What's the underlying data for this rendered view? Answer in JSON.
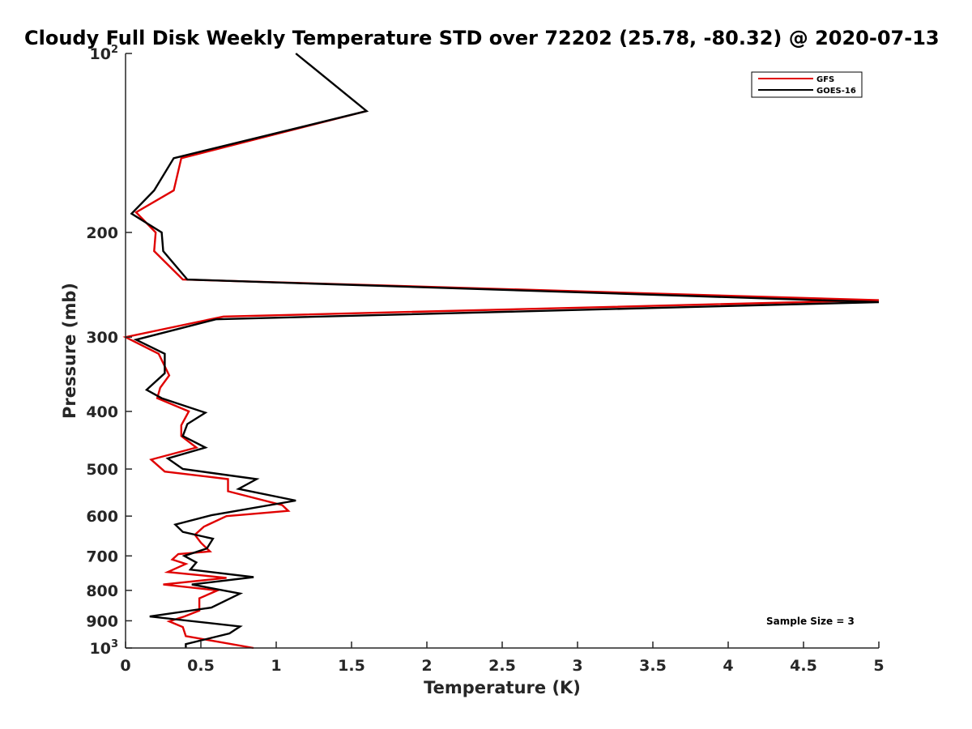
{
  "chart_data": {
    "type": "line",
    "title": "Cloudy Full Disk Weekly Temperature STD over 72202 (25.78, -80.32) @ 2020-07-13",
    "xlabel": "Temperature (K)",
    "ylabel": "Pressure (mb)",
    "xlim": [
      0,
      5
    ],
    "ylim": [
      100,
      1000
    ],
    "y_scale": "log",
    "y_reversed": true,
    "x_ticks": [
      "0",
      "0.5",
      "1",
      "1.5",
      "2",
      "2.5",
      "3",
      "3.5",
      "4",
      "4.5",
      "5"
    ],
    "y_ticks": [
      {
        "value": 100,
        "base": "10",
        "exp": "2"
      },
      {
        "value": 200,
        "label": "200"
      },
      {
        "value": 300,
        "label": "300"
      },
      {
        "value": 400,
        "label": "400"
      },
      {
        "value": 500,
        "label": "500"
      },
      {
        "value": 600,
        "label": "600"
      },
      {
        "value": 700,
        "label": "700"
      },
      {
        "value": 800,
        "label": "800"
      },
      {
        "value": 900,
        "label": "900"
      },
      {
        "value": 1000,
        "base": "10",
        "exp": "3"
      }
    ],
    "legend_position": "top-right",
    "grid": false,
    "annotation": "Sample Size = 3",
    "series": [
      {
        "name": "GFS",
        "color": "#e00000",
        "points": [
          [
            1.6,
            125
          ],
          [
            0.37,
            150
          ],
          [
            0.32,
            170
          ],
          [
            0.07,
            185
          ],
          [
            0.2,
            200
          ],
          [
            0.19,
            215
          ],
          [
            0.38,
            240
          ],
          [
            5.0,
            260
          ],
          [
            0.65,
            277
          ],
          [
            0.0,
            300
          ],
          [
            0.22,
            320
          ],
          [
            0.29,
            348
          ],
          [
            0.23,
            365
          ],
          [
            0.21,
            380
          ],
          [
            0.42,
            400
          ],
          [
            0.37,
            422
          ],
          [
            0.37,
            440
          ],
          [
            0.47,
            460
          ],
          [
            0.17,
            482
          ],
          [
            0.26,
            505
          ],
          [
            0.68,
            520
          ],
          [
            0.68,
            545
          ],
          [
            1.04,
            575
          ],
          [
            1.08,
            588
          ],
          [
            0.67,
            600
          ],
          [
            0.52,
            625
          ],
          [
            0.46,
            645
          ],
          [
            0.5,
            665
          ],
          [
            0.56,
            688
          ],
          [
            0.35,
            695
          ],
          [
            0.31,
            710
          ],
          [
            0.4,
            722
          ],
          [
            0.28,
            745
          ],
          [
            0.67,
            762
          ],
          [
            0.25,
            782
          ],
          [
            0.61,
            800
          ],
          [
            0.49,
            825
          ],
          [
            0.49,
            865
          ],
          [
            0.39,
            885
          ],
          [
            0.29,
            902
          ],
          [
            0.38,
            922
          ],
          [
            0.4,
            955
          ],
          [
            0.85,
            1000
          ]
        ]
      },
      {
        "name": "GOES-16",
        "color": "#000000",
        "points": [
          [
            1.13,
            100
          ],
          [
            1.6,
            125
          ],
          [
            0.32,
            150
          ],
          [
            0.19,
            170
          ],
          [
            0.04,
            186
          ],
          [
            0.24,
            200
          ],
          [
            0.25,
            215
          ],
          [
            0.41,
            240
          ],
          [
            5.0,
            262
          ],
          [
            0.6,
            280
          ],
          [
            0.07,
            303
          ],
          [
            0.26,
            320
          ],
          [
            0.26,
            345
          ],
          [
            0.14,
            368
          ],
          [
            0.24,
            380
          ],
          [
            0.53,
            402
          ],
          [
            0.41,
            420
          ],
          [
            0.38,
            440
          ],
          [
            0.53,
            460
          ],
          [
            0.28,
            480
          ],
          [
            0.38,
            500
          ],
          [
            0.87,
            520
          ],
          [
            0.75,
            540
          ],
          [
            1.13,
            565
          ],
          [
            0.57,
            598
          ],
          [
            0.33,
            620
          ],
          [
            0.38,
            638
          ],
          [
            0.58,
            655
          ],
          [
            0.54,
            680
          ],
          [
            0.39,
            700
          ],
          [
            0.47,
            718
          ],
          [
            0.43,
            738
          ],
          [
            0.85,
            760
          ],
          [
            0.44,
            782
          ],
          [
            0.76,
            810
          ],
          [
            0.57,
            855
          ],
          [
            0.16,
            885
          ],
          [
            0.76,
            920
          ],
          [
            0.69,
            945
          ],
          [
            0.4,
            985
          ],
          [
            0.4,
            1000
          ]
        ]
      }
    ]
  }
}
